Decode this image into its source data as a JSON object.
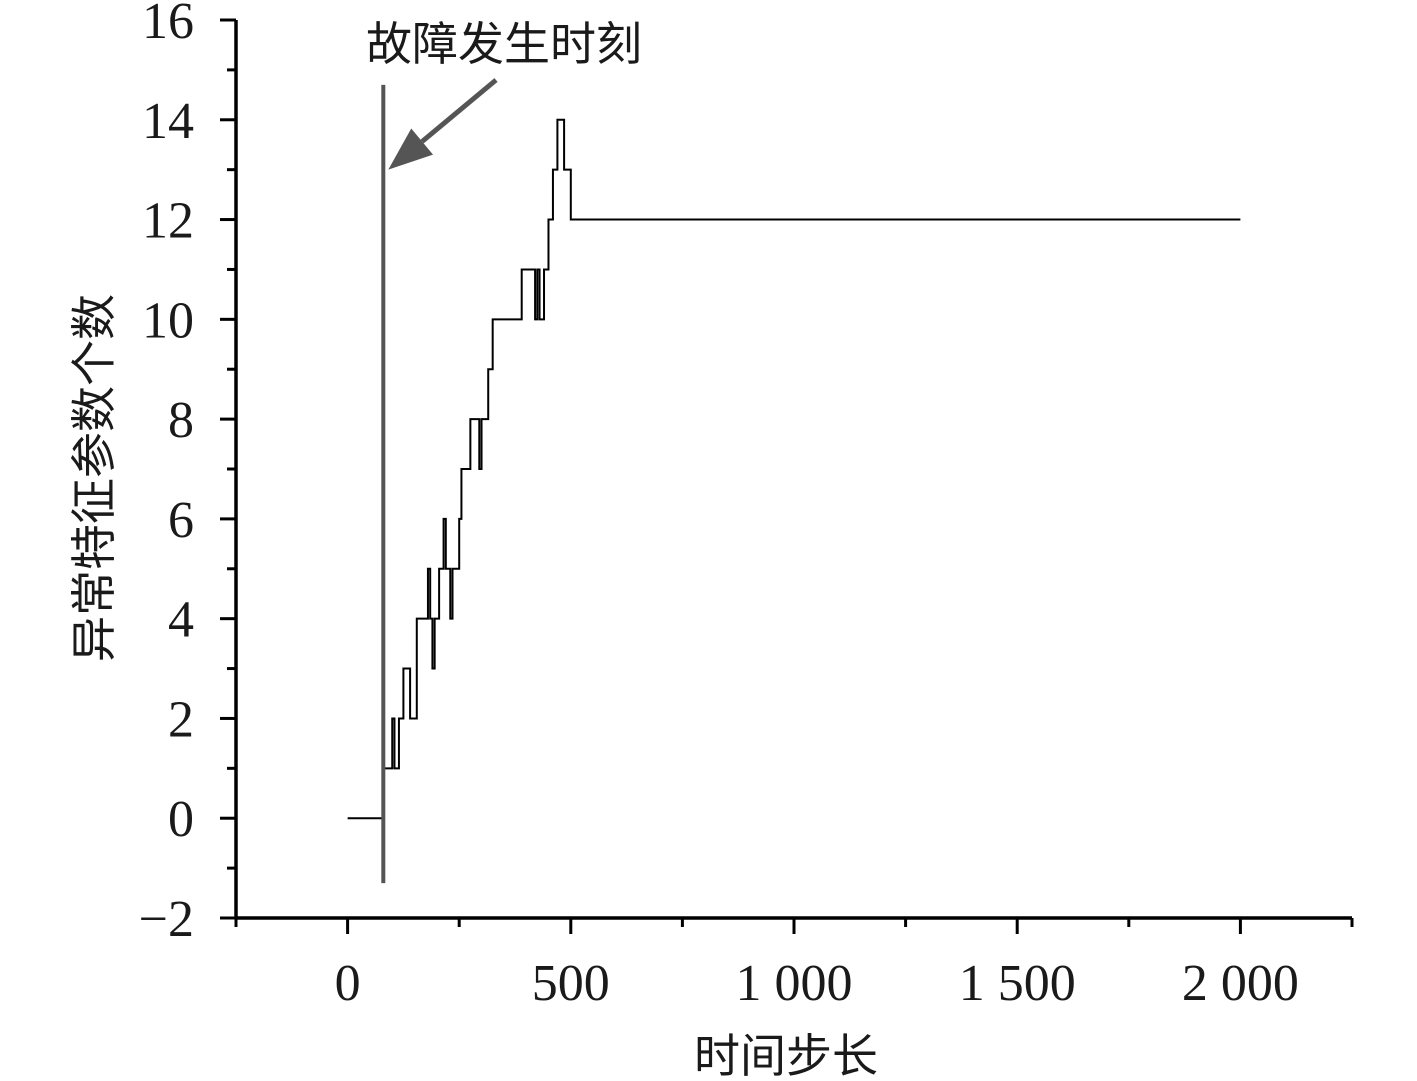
{
  "chart_data": {
    "type": "line",
    "title": "",
    "xlabel": "时间步长",
    "ylabel": "异常特征参数个数",
    "xlim": [
      -250,
      2250
    ],
    "ylim": [
      -2,
      16
    ],
    "x_ticks": [
      0,
      500,
      1000,
      1500,
      2000
    ],
    "x_tick_labels": [
      "0",
      "500",
      "1 000",
      "1 500",
      "2 000"
    ],
    "y_ticks": [
      -2,
      0,
      2,
      4,
      6,
      8,
      10,
      12,
      14,
      16
    ],
    "y_tick_labels": [
      "−2",
      "0",
      "2",
      "4",
      "6",
      "8",
      "10",
      "12",
      "14",
      "16"
    ],
    "grid": false,
    "line_style": "step",
    "series": [
      {
        "x": [
          0,
          80,
          80,
          100,
          100,
          105,
          105,
          115,
          115,
          125,
          125,
          140,
          140,
          155,
          155,
          180,
          180,
          185,
          185,
          190,
          190,
          195,
          195,
          205,
          205,
          215,
          215,
          220,
          220,
          230,
          230,
          235,
          235,
          250,
          250,
          255,
          255,
          275,
          275,
          295,
          295,
          300,
          300,
          315,
          315,
          325,
          325,
          340,
          340,
          390,
          390,
          420,
          420,
          425,
          425,
          430,
          430,
          440,
          440,
          450,
          450,
          460,
          460,
          470,
          470,
          485,
          485,
          500,
          500,
          2000
        ],
        "y": [
          0,
          0,
          1,
          1,
          2,
          2,
          1,
          1,
          2,
          2,
          3,
          3,
          2,
          2,
          4,
          4,
          5,
          5,
          4,
          4,
          3,
          3,
          4,
          4,
          5,
          5,
          6,
          6,
          5,
          5,
          4,
          4,
          5,
          5,
          6,
          6,
          7,
          7,
          8,
          8,
          7,
          7,
          8,
          8,
          9,
          9,
          10,
          10,
          10,
          10,
          11,
          11,
          10,
          10,
          11,
          11,
          10,
          10,
          11,
          11,
          12,
          12,
          13,
          13,
          14,
          14,
          13,
          13,
          12,
          12
        ]
      }
    ],
    "fault_marker": {
      "x": 80,
      "y_range": [
        -1.3,
        14.7
      ]
    },
    "annotation": {
      "text": "故障发生时刻"
    }
  }
}
